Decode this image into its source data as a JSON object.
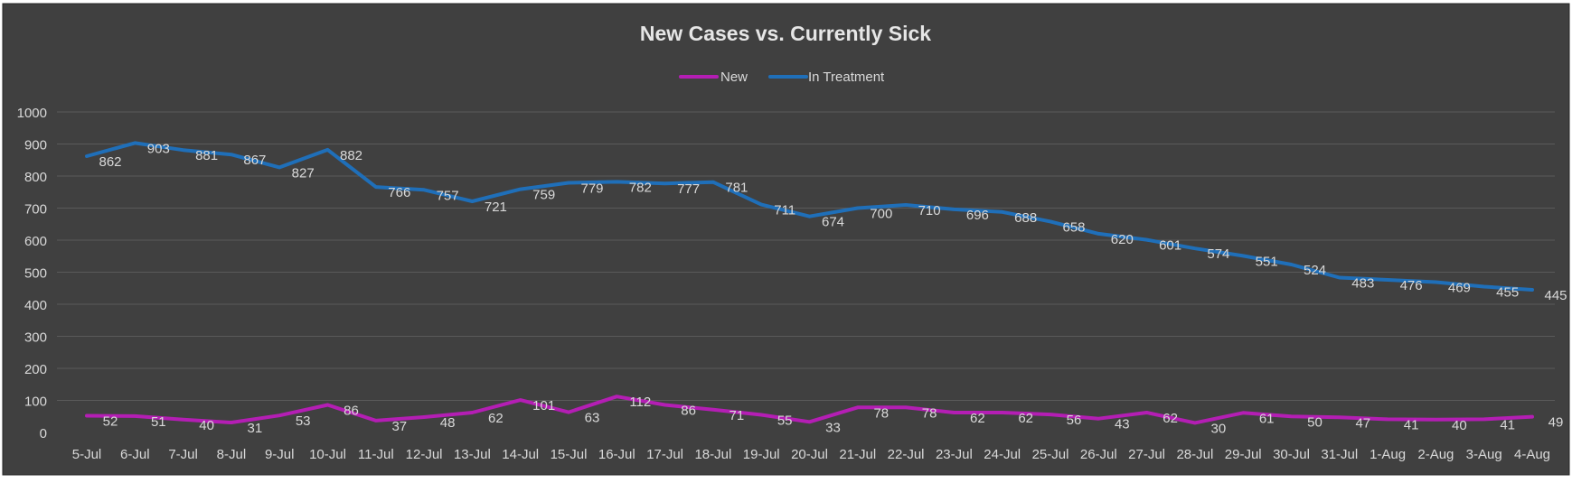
{
  "chart_data": {
    "type": "line",
    "title": "New Cases vs. Currently Sick",
    "xlabel": "",
    "ylabel": "",
    "ylim": [
      0,
      1000
    ],
    "yticks": [
      0,
      100,
      200,
      300,
      400,
      500,
      600,
      700,
      800,
      900,
      1000
    ],
    "grid": true,
    "legend_position": "top",
    "categories": [
      "5-Jul",
      "6-Jul",
      "7-Jul",
      "8-Jul",
      "9-Jul",
      "10-Jul",
      "11-Jul",
      "12-Jul",
      "13-Jul",
      "14-Jul",
      "15-Jul",
      "16-Jul",
      "17-Jul",
      "18-Jul",
      "19-Jul",
      "20-Jul",
      "21-Jul",
      "22-Jul",
      "23-Jul",
      "24-Jul",
      "25-Jul",
      "26-Jul",
      "27-Jul",
      "28-Jul",
      "29-Jul",
      "30-Jul",
      "31-Jul",
      "1-Aug",
      "2-Aug",
      "3-Aug",
      "4-Aug"
    ],
    "series": [
      {
        "name": "New",
        "color": "#b41eb4",
        "values": [
          52,
          51,
          40,
          31,
          53,
          86,
          37,
          48,
          62,
          101,
          63,
          112,
          86,
          71,
          55,
          33,
          78,
          78,
          62,
          62,
          56,
          43,
          62,
          30,
          61,
          50,
          47,
          41,
          40,
          41,
          49
        ]
      },
      {
        "name": "In Treatment",
        "color": "#1f6fb9",
        "values": [
          862,
          903,
          881,
          867,
          827,
          882,
          766,
          757,
          721,
          759,
          779,
          782,
          777,
          781,
          711,
          674,
          700,
          710,
          696,
          688,
          658,
          620,
          601,
          574,
          551,
          524,
          483,
          476,
          469,
          455,
          445
        ]
      }
    ],
    "colors": {
      "background": "#404040",
      "gridline": "#5a5a5a",
      "text": "#d9d9d9",
      "title": "#e6e6e6"
    }
  }
}
